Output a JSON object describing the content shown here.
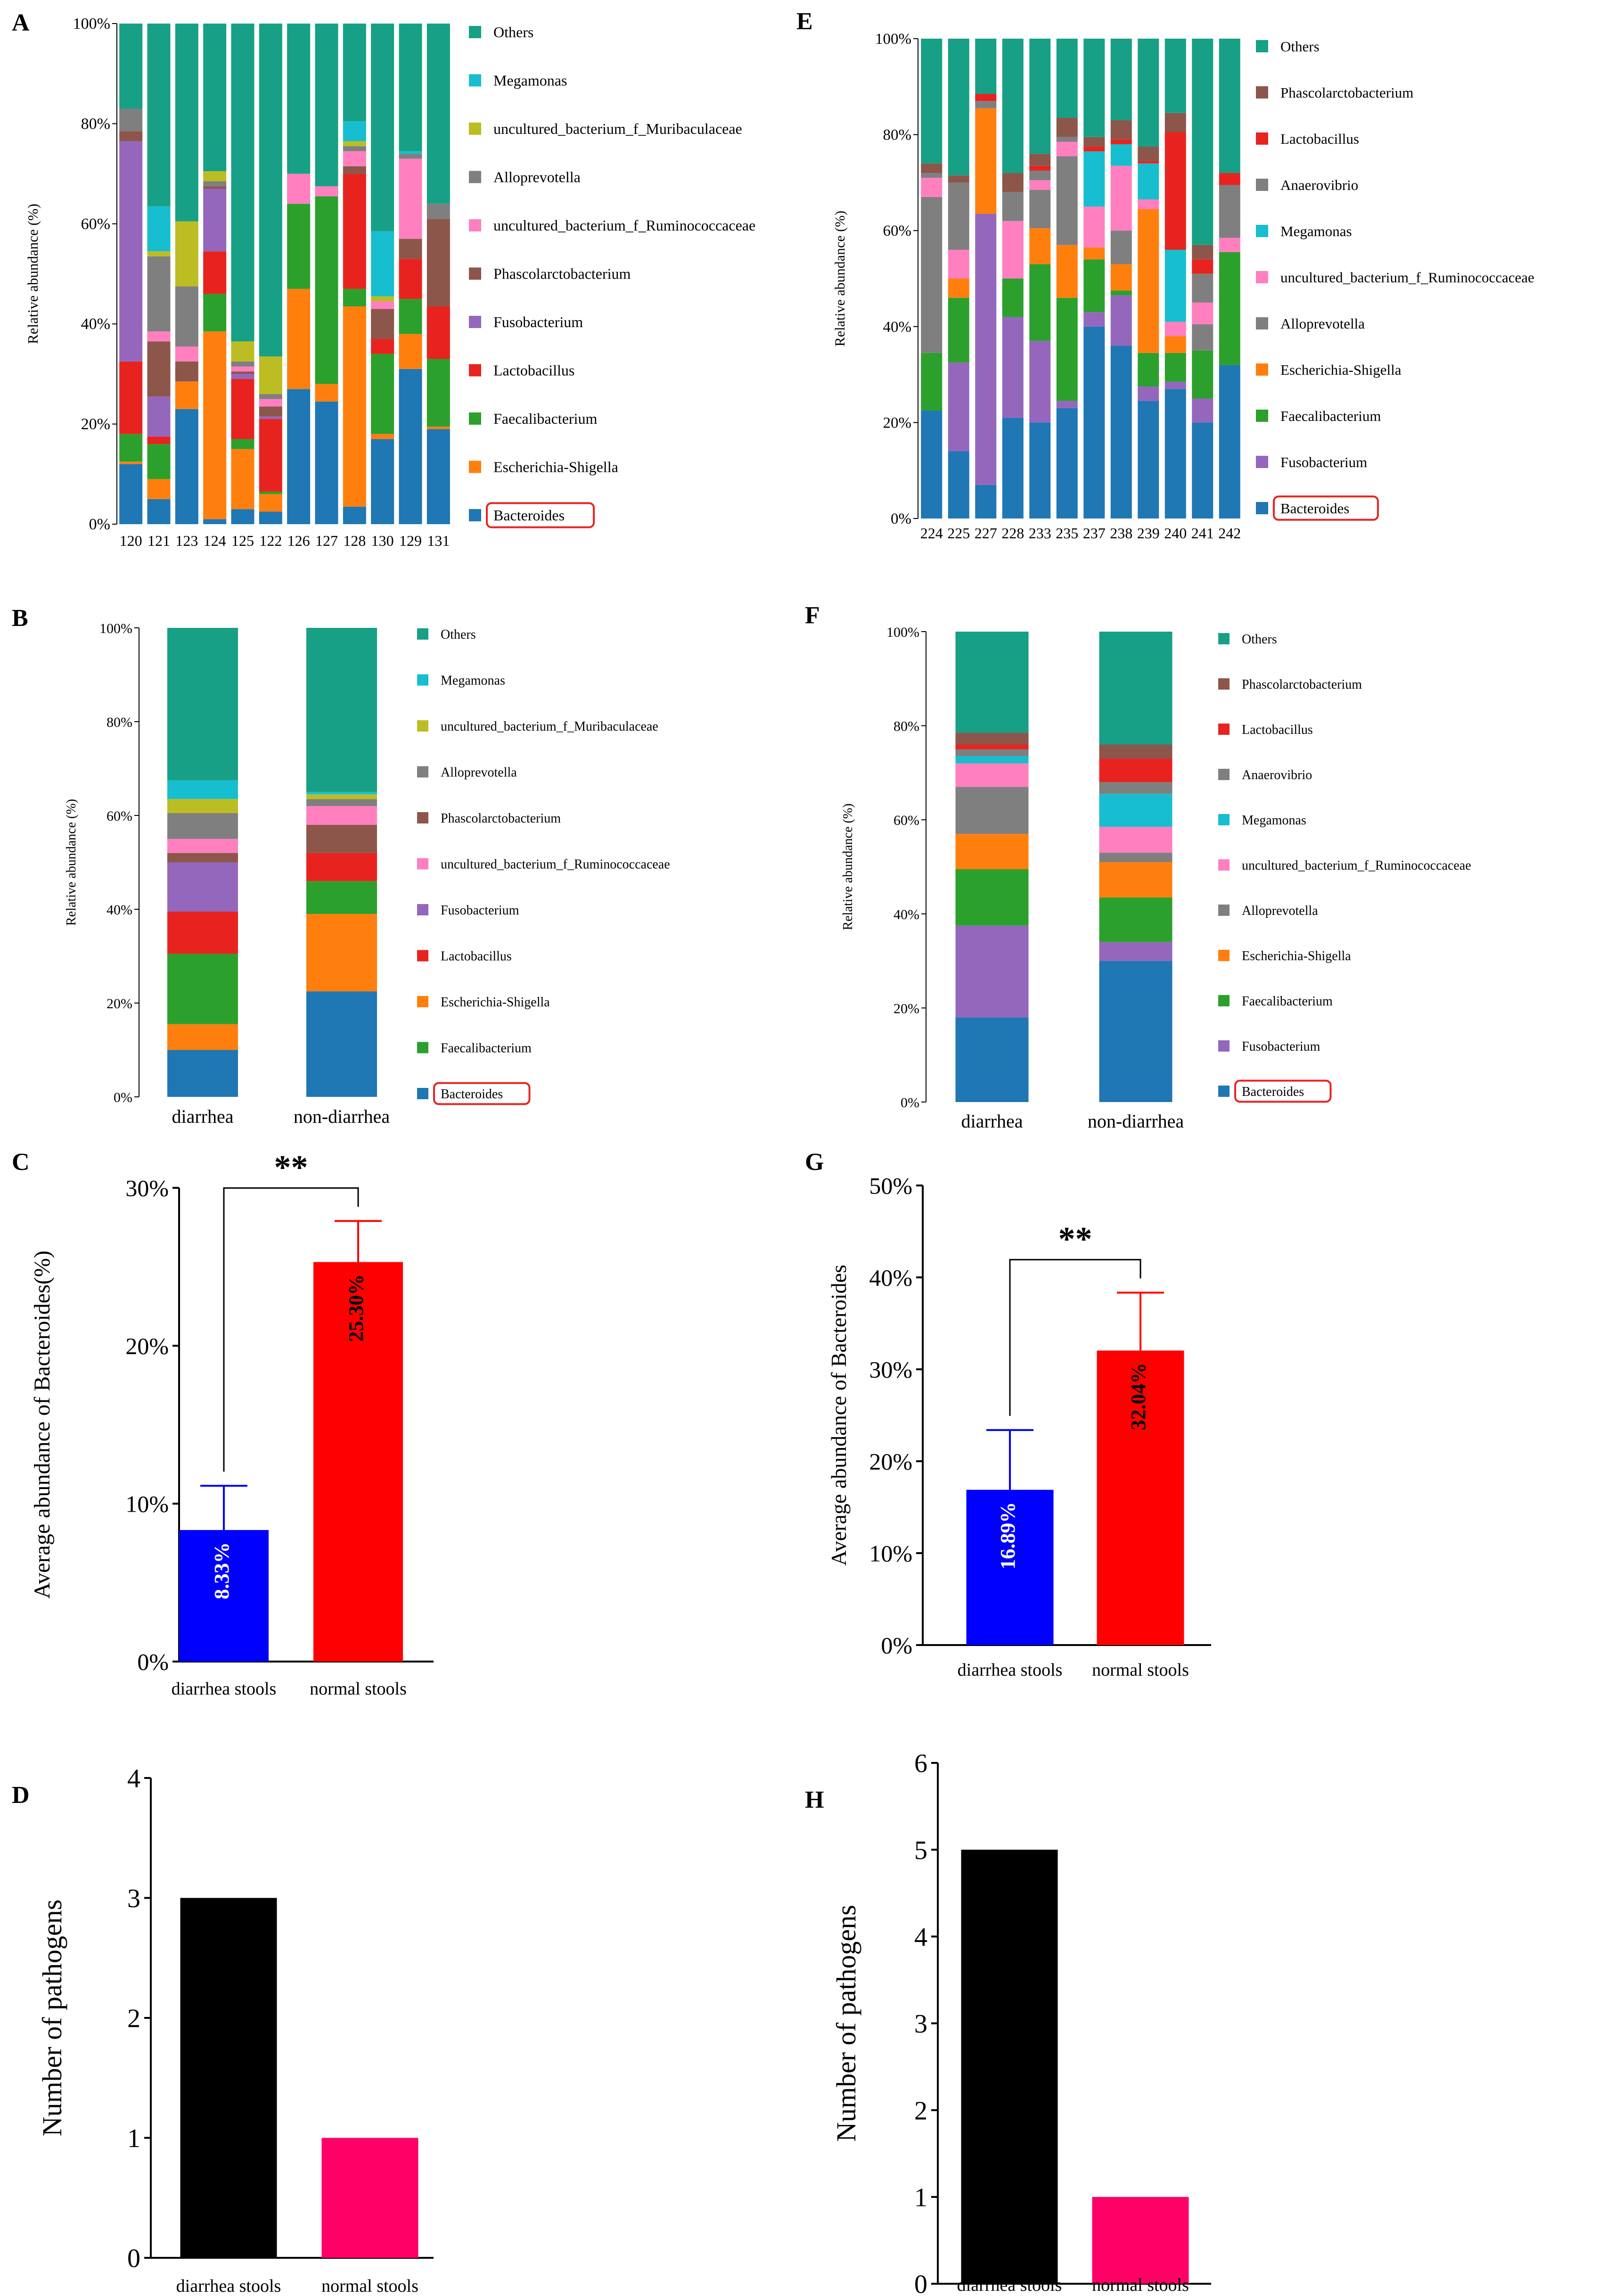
{
  "figure": {
    "palette": {
      "Bacteroides": "#1f77b4",
      "Escherichia-Shigella": "#ff7f0e",
      "Faecalibacterium": "#2ca02c",
      "Lactobacillus": "#e8231f",
      "Fusobacterium": "#9467bd",
      "Phascolarctobacterium": "#8c564b",
      "uncultured_bacterium_f_Ruminococcaceae": "#ff7fbf",
      "Alloprevotella": "#7f7f7f",
      "uncultured_bacterium_f_Muribaculaceae": "#bcbd22",
      "Megamonas": "#17becf",
      "Others": "#17a085",
      "Anaerovibrio": "#7f7f7f"
    }
  },
  "chart_data": [
    {
      "panel": "A",
      "type": "bar",
      "stacked": true,
      "ylabel": "Relative abundance (%)",
      "yticks": [
        "0%",
        "20%",
        "40%",
        "60%",
        "80%",
        "100%"
      ],
      "ylim": [
        0,
        100
      ],
      "categories": [
        "120",
        "121",
        "123",
        "124",
        "125",
        "122",
        "126",
        "127",
        "128",
        "130",
        "129",
        "131"
      ],
      "legend": [
        "Others",
        "Megamonas",
        "uncultured_bacterium_f_Muribaculaceae",
        "Alloprevotella",
        "uncultured_bacterium_f_Ruminococcaceae",
        "Phascolarctobacterium",
        "Fusobacterium",
        "Lactobacillus",
        "Faecalibacterium",
        "Escherichia-Shigella",
        "Bacteroides"
      ],
      "highlight": "Bacteroides",
      "series": [
        {
          "name": "Bacteroides",
          "values": [
            12,
            5,
            23,
            1,
            3,
            2.5,
            27,
            24.5,
            3.5,
            17,
            31,
            19
          ]
        },
        {
          "name": "Escherichia-Shigella",
          "values": [
            0.5,
            4,
            5.5,
            37.5,
            12,
            3.5,
            20,
            3.5,
            40,
            1,
            7,
            0.5
          ]
        },
        {
          "name": "Faecalibacterium",
          "values": [
            5.5,
            7,
            0,
            7.5,
            2,
            0.5,
            17,
            37.5,
            3.5,
            16,
            7,
            13.5
          ]
        },
        {
          "name": "Lactobacillus",
          "values": [
            14.5,
            1.5,
            0,
            8.5,
            12,
            14.5,
            0,
            0,
            23,
            3,
            8,
            10.5
          ]
        },
        {
          "name": "Fusobacterium",
          "values": [
            44,
            8,
            0,
            12.5,
            1,
            0.5,
            0,
            0,
            0,
            0,
            0,
            0
          ]
        },
        {
          "name": "Phascolarctobacterium",
          "values": [
            2,
            11,
            4,
            0.5,
            0.5,
            2,
            0,
            0,
            1.5,
            6,
            4,
            17.5
          ]
        },
        {
          "name": "uncultured_bacterium_f_Ruminococcaceae",
          "values": [
            0,
            2,
            3,
            0,
            1,
            1.5,
            6,
            2,
            3,
            1.5,
            16,
            0
          ]
        },
        {
          "name": "Alloprevotella",
          "values": [
            4.5,
            15,
            12,
            1,
            1,
            1,
            0,
            0,
            1,
            0,
            1,
            3
          ]
        },
        {
          "name": "uncultured_bacterium_f_Muribaculaceae",
          "values": [
            0,
            1,
            13,
            2,
            4,
            7.5,
            0,
            0,
            1,
            1,
            0,
            0
          ]
        },
        {
          "name": "Megamonas",
          "values": [
            0,
            9,
            0,
            0,
            0,
            0,
            0,
            0,
            4,
            13,
            0.5,
            0
          ]
        },
        {
          "name": "Others",
          "values": [
            17,
            36.5,
            39.5,
            29.5,
            63.5,
            66.5,
            30,
            32.5,
            19.5,
            41.5,
            25.5,
            36
          ]
        }
      ]
    },
    {
      "panel": "B",
      "type": "bar",
      "stacked": true,
      "ylabel": "Relative abundance (%)",
      "yticks": [
        "0%",
        "20%",
        "40%",
        "60%",
        "80%",
        "100%"
      ],
      "ylim": [
        0,
        100
      ],
      "categories": [
        "diarrhea",
        "non-diarrhea"
      ],
      "legend": [
        "Others",
        "Megamonas",
        "uncultured_bacterium_f_Muribaculaceae",
        "Alloprevotella",
        "Phascolarctobacterium",
        "uncultured_bacterium_f_Ruminococcaceae",
        "Fusobacterium",
        "Lactobacillus",
        "Escherichia-Shigella",
        "Faecalibacterium",
        "Bacteroides"
      ],
      "highlight": "Bacteroides",
      "series": [
        {
          "name": "Bacteroides",
          "values": [
            10,
            22.5
          ]
        },
        {
          "name": "Escherichia-Shigella",
          "values": [
            5.5,
            16.5
          ]
        },
        {
          "name": "Faecalibacterium",
          "values": [
            15,
            7
          ]
        },
        {
          "name": "Lactobacillus",
          "values": [
            9,
            6
          ]
        },
        {
          "name": "Fusobacterium",
          "values": [
            10.5,
            0
          ]
        },
        {
          "name": "Phascolarctobacterium",
          "values": [
            2,
            6
          ]
        },
        {
          "name": "uncultured_bacterium_f_Ruminococcaceae",
          "values": [
            3,
            4
          ]
        },
        {
          "name": "Alloprevotella",
          "values": [
            5.5,
            1.5
          ]
        },
        {
          "name": "uncultured_bacterium_f_Muribaculaceae",
          "values": [
            3,
            1
          ]
        },
        {
          "name": "Megamonas",
          "values": [
            4,
            0.5
          ]
        },
        {
          "name": "Others",
          "values": [
            32.5,
            35
          ]
        }
      ]
    },
    {
      "panel": "C",
      "type": "bar",
      "ylabel": "Average abundance of Bacteroides(%)",
      "yticks": [
        "0%",
        "10%",
        "20%",
        "30%"
      ],
      "ylim": [
        0,
        30
      ],
      "categories": [
        "diarrhea stools",
        "normal stools"
      ],
      "values": [
        8.33,
        25.3
      ],
      "errors": [
        2.8,
        2.6
      ],
      "labels": [
        "8.33%",
        "25.30%"
      ],
      "colors": [
        "#0000ff",
        "#ff0000"
      ],
      "significance": "**"
    },
    {
      "panel": "D",
      "type": "bar",
      "ylabel": "Number of pathogens",
      "yticks": [
        "0",
        "1",
        "2",
        "3",
        "4"
      ],
      "ylim": [
        0,
        4
      ],
      "categories": [
        "diarrhea stools",
        "normal stools"
      ],
      "values": [
        3,
        1
      ],
      "colors": [
        "#000000",
        "#ff0066"
      ]
    },
    {
      "panel": "E",
      "type": "bar",
      "stacked": true,
      "ylabel": "Relative abundance (%)",
      "yticks": [
        "0%",
        "20%",
        "40%",
        "60%",
        "80%",
        "100%"
      ],
      "ylim": [
        0,
        100
      ],
      "categories": [
        "224",
        "225",
        "227",
        "228",
        "233",
        "235",
        "237",
        "238",
        "239",
        "240",
        "241",
        "242"
      ],
      "legend": [
        "Others",
        "Phascolarctobacterium",
        "Lactobacillus",
        "Anaerovibrio",
        "Megamonas",
        "uncultured_bacterium_f_Ruminococcaceae",
        "Alloprevotella",
        "Escherichia-Shigella",
        "Faecalibacterium",
        "Fusobacterium",
        "Bacteroides"
      ],
      "highlight": "Bacteroides",
      "series": [
        {
          "name": "Bacteroides",
          "values": [
            22.5,
            14,
            7,
            21,
            20,
            23,
            40,
            36,
            24.5,
            27,
            20,
            32
          ]
        },
        {
          "name": "Fusobacterium",
          "values": [
            0,
            18.5,
            56.5,
            21,
            17,
            1.5,
            3,
            10.5,
            3,
            1.5,
            5,
            0
          ]
        },
        {
          "name": "Faecalibacterium",
          "values": [
            12,
            13.5,
            0,
            8,
            16,
            21.5,
            11,
            1,
            7,
            6,
            10,
            23.5
          ]
        },
        {
          "name": "Escherichia-Shigella",
          "values": [
            0,
            4,
            22,
            0,
            7.5,
            11,
            2.5,
            5.5,
            30,
            3.5,
            0,
            0
          ]
        },
        {
          "name": "Alloprevotella",
          "values": [
            32.5,
            0,
            0,
            0,
            8,
            18.5,
            0,
            7,
            0,
            0,
            5.5,
            0
          ]
        },
        {
          "name": "uncultured_bacterium_f_Ruminococcaceae",
          "values": [
            4,
            6,
            0,
            12,
            2,
            3,
            8.5,
            13.5,
            2,
            3,
            4.5,
            3
          ]
        },
        {
          "name": "Megamonas",
          "values": [
            0,
            0,
            0,
            0,
            0,
            0,
            11.5,
            4.5,
            7.5,
            15,
            0,
            0
          ]
        },
        {
          "name": "Anaerovibrio",
          "values": [
            1,
            14,
            1.5,
            6,
            2,
            1,
            0,
            0,
            0,
            0,
            6,
            11
          ]
        },
        {
          "name": "Lactobacillus",
          "values": [
            0,
            0,
            1.5,
            0,
            1,
            0,
            1,
            1,
            0.5,
            24.5,
            3,
            2.5
          ]
        },
        {
          "name": "Phascolarctobacterium",
          "values": [
            2,
            1.5,
            0,
            4,
            2.5,
            4,
            2,
            4,
            3,
            4,
            3,
            0
          ]
        },
        {
          "name": "Others",
          "values": [
            26,
            28.5,
            11.5,
            28,
            24,
            16.5,
            20.5,
            17,
            22.5,
            15.5,
            43,
            28
          ]
        }
      ]
    },
    {
      "panel": "F",
      "type": "bar",
      "stacked": true,
      "ylabel": "Relative abundance (%)",
      "yticks": [
        "0%",
        "20%",
        "40%",
        "60%",
        "80%",
        "100%"
      ],
      "ylim": [
        0,
        100
      ],
      "categories": [
        "diarrhea",
        "non-diarrhea"
      ],
      "legend": [
        "Others",
        "Phascolarctobacterium",
        "Lactobacillus",
        "Anaerovibrio",
        "Megamonas",
        "uncultured_bacterium_f_Ruminococcaceae",
        "Alloprevotella",
        "Escherichia-Shigella",
        "Faecalibacterium",
        "Fusobacterium",
        "Bacteroides"
      ],
      "highlight": "Bacteroides",
      "series": [
        {
          "name": "Bacteroides",
          "values": [
            18,
            30
          ]
        },
        {
          "name": "Fusobacterium",
          "values": [
            19.5,
            4
          ]
        },
        {
          "name": "Faecalibacterium",
          "values": [
            12,
            9.5
          ]
        },
        {
          "name": "Escherichia-Shigella",
          "values": [
            7.5,
            7.5
          ]
        },
        {
          "name": "Alloprevotella",
          "values": [
            10,
            2
          ]
        },
        {
          "name": "uncultured_bacterium_f_Ruminococcaceae",
          "values": [
            5,
            5.5
          ]
        },
        {
          "name": "Megamonas",
          "values": [
            1.5,
            7
          ]
        },
        {
          "name": "Anaerovibrio",
          "values": [
            1.5,
            2.5
          ]
        },
        {
          "name": "Lactobacillus",
          "values": [
            1,
            5
          ]
        },
        {
          "name": "Phascolarctobacterium",
          "values": [
            2.5,
            3
          ]
        },
        {
          "name": "Others",
          "values": [
            21.5,
            24
          ]
        }
      ]
    },
    {
      "panel": "G",
      "type": "bar",
      "ylabel": "Average abundance of Bacteroides",
      "yticks": [
        "0%",
        "10%",
        "20%",
        "30%",
        "40%",
        "50%"
      ],
      "ylim": [
        0,
        50
      ],
      "categories": [
        "diarrhea stools",
        "normal stools"
      ],
      "values": [
        16.89,
        32.04
      ],
      "errors": [
        6.5,
        6.3
      ],
      "labels": [
        "16.89%",
        "32.04%"
      ],
      "colors": [
        "#0000ff",
        "#ff0000"
      ],
      "significance": "**"
    },
    {
      "panel": "H",
      "type": "bar",
      "ylabel": "Number of pathogens",
      "yticks": [
        "0",
        "1",
        "2",
        "3",
        "4",
        "5",
        "6"
      ],
      "ylim": [
        0,
        6
      ],
      "categories": [
        "diarrhea stools",
        "normal stools"
      ],
      "values": [
        5,
        1
      ],
      "colors": [
        "#000000",
        "#ff0066"
      ]
    }
  ]
}
